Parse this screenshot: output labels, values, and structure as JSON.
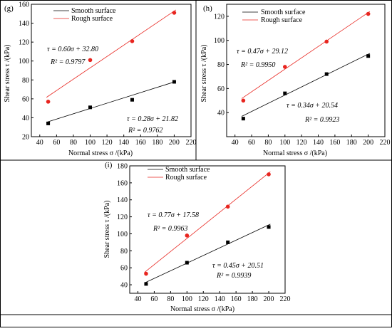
{
  "chart_data": [
    {
      "type": "scatter",
      "panel_label": "(g)",
      "xlabel": "Normal stress σ /(kPa)",
      "ylabel": "Shear stress τ /(kPa)",
      "xlim": [
        30,
        220
      ],
      "ylim": [
        20,
        160
      ],
      "xticks": [
        40,
        60,
        80,
        100,
        120,
        140,
        160,
        180,
        200,
        220
      ],
      "yticks": [
        20,
        40,
        60,
        80,
        100,
        120,
        140,
        160
      ],
      "legend_position": "top-left",
      "series": [
        {
          "name": "Smooth surface",
          "color": "#000000",
          "marker": "square",
          "x": [
            50,
            100,
            150,
            200
          ],
          "y": [
            34,
            51,
            59,
            78
          ],
          "fit": {
            "slope": 0.28,
            "intercept": 21.82
          },
          "equation": "τ = 0.28σ + 21.82",
          "r2": "R² = 0.9762"
        },
        {
          "name": "Rough surface",
          "color": "#e8251f",
          "marker": "circle",
          "x": [
            50,
            100,
            150,
            200
          ],
          "y": [
            57,
            101,
            121,
            151
          ],
          "fit": {
            "slope": 0.6,
            "intercept": 32.8
          },
          "equation": "τ = 0.60σ + 32.80",
          "r2": "R² = 0.9797"
        }
      ]
    },
    {
      "type": "scatter",
      "panel_label": "(h)",
      "xlabel": "Normal stress σ /(kPa)",
      "ylabel": "Shear stress τ /(kPa)",
      "xlim": [
        30,
        220
      ],
      "ylim": [
        20,
        130
      ],
      "xticks": [
        40,
        60,
        80,
        100,
        120,
        140,
        160,
        180,
        200,
        220
      ],
      "yticks": [
        40,
        60,
        80,
        100,
        120
      ],
      "legend_position": "top-left",
      "series": [
        {
          "name": "Smooth surface",
          "color": "#000000",
          "marker": "square",
          "x": [
            50,
            100,
            150,
            200
          ],
          "y": [
            35,
            56,
            72,
            87
          ],
          "fit": {
            "slope": 0.34,
            "intercept": 20.54
          },
          "equation": "τ = 0.34σ + 20.54",
          "r2": "R² = 0.9923"
        },
        {
          "name": "Rough surface",
          "color": "#e8251f",
          "marker": "circle",
          "x": [
            50,
            100,
            150,
            200
          ],
          "y": [
            50,
            78,
            99,
            122
          ],
          "fit": {
            "slope": 0.47,
            "intercept": 29.12
          },
          "equation": "τ = 0.47σ + 29.12",
          "r2": "R² = 0.9950"
        }
      ]
    },
    {
      "type": "scatter",
      "panel_label": "(i)",
      "xlabel": "Normal stress σ /(kPa)",
      "ylabel": "Shear stress τ /(kPa)",
      "xlim": [
        30,
        220
      ],
      "ylim": [
        30,
        180
      ],
      "xticks": [
        40,
        60,
        80,
        100,
        120,
        140,
        160,
        180,
        200,
        220
      ],
      "yticks": [
        40,
        60,
        80,
        100,
        120,
        140,
        160,
        180
      ],
      "legend_position": "top-left",
      "series": [
        {
          "name": "Smooth surface",
          "color": "#000000",
          "marker": "square",
          "x": [
            50,
            100,
            150,
            200
          ],
          "y": [
            41,
            66,
            90,
            108
          ],
          "fit": {
            "slope": 0.45,
            "intercept": 20.51
          },
          "equation": "τ = 0.45σ + 20.51",
          "r2": "R² = 0.9939"
        },
        {
          "name": "Rough surface",
          "color": "#e8251f",
          "marker": "circle",
          "x": [
            50,
            100,
            150,
            200
          ],
          "y": [
            53,
            98,
            132,
            170
          ],
          "fit": {
            "slope": 0.77,
            "intercept": 17.58
          },
          "equation": "τ = 0.77σ + 17.58",
          "r2": "R² = 0.9963"
        }
      ]
    }
  ]
}
